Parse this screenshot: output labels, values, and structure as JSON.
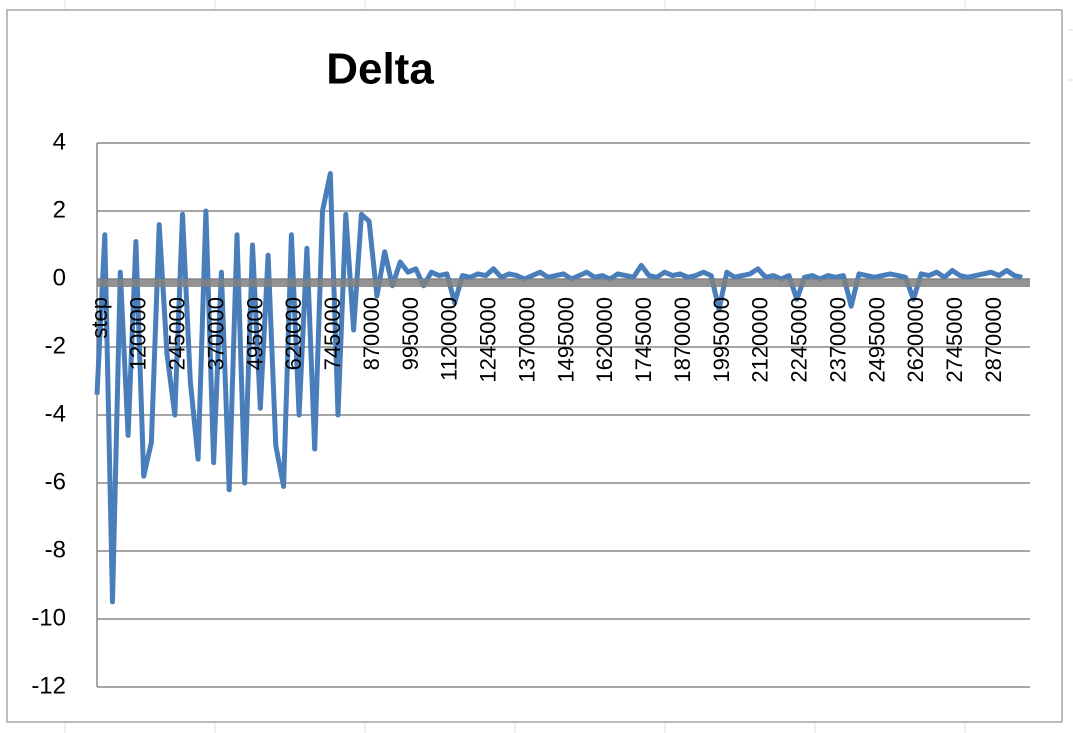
{
  "chart_data": {
    "type": "line",
    "title": "Delta",
    "categories": [
      "step",
      null,
      null,
      null,
      null,
      "120000",
      null,
      null,
      null,
      null,
      "245000",
      null,
      null,
      null,
      null,
      "370000",
      null,
      null,
      null,
      null,
      "495000",
      null,
      null,
      null,
      null,
      "620000",
      null,
      null,
      null,
      null,
      "745000",
      null,
      null,
      null,
      null,
      "870000",
      null,
      null,
      null,
      null,
      "995000",
      null,
      null,
      null,
      null,
      "1120000",
      null,
      null,
      null,
      null,
      "1245000",
      null,
      null,
      null,
      null,
      "1370000",
      null,
      null,
      null,
      null,
      "1495000",
      null,
      null,
      null,
      null,
      "1620000",
      null,
      null,
      null,
      null,
      "1745000",
      null,
      null,
      null,
      null,
      "1870000",
      null,
      null,
      null,
      null,
      "1995000",
      null,
      null,
      null,
      null,
      "2120000",
      null,
      null,
      null,
      null,
      "2245000",
      null,
      null,
      null,
      null,
      "2370000",
      null,
      null,
      null,
      null,
      "2495000",
      null,
      null,
      null,
      null,
      "2620000",
      null,
      null,
      null,
      null,
      "2745000",
      null,
      null,
      null,
      null,
      "2870000",
      null,
      null,
      null,
      null
    ],
    "values": [
      -3.4,
      1.3,
      -9.5,
      0.2,
      -4.6,
      1.1,
      -5.8,
      -4.8,
      1.6,
      -2.2,
      -4.0,
      1.9,
      -3.0,
      -5.3,
      2.0,
      -5.4,
      0.2,
      -6.2,
      1.3,
      -6.0,
      1.0,
      -3.8,
      0.7,
      -4.9,
      -6.1,
      1.3,
      -4.0,
      0.9,
      -5.0,
      2.0,
      3.1,
      -4.0,
      1.9,
      -1.5,
      1.9,
      1.7,
      -0.5,
      0.8,
      -0.2,
      0.5,
      0.2,
      0.3,
      -0.2,
      0.2,
      0.1,
      0.15,
      -0.7,
      0.1,
      0.05,
      0.15,
      0.1,
      0.3,
      0.05,
      0.15,
      0.1,
      0.0,
      0.1,
      0.2,
      0.05,
      0.1,
      0.15,
      0.0,
      0.1,
      0.2,
      0.05,
      0.1,
      0.0,
      0.15,
      0.1,
      0.05,
      0.4,
      0.1,
      0.05,
      0.2,
      0.1,
      0.15,
      0.05,
      0.1,
      0.2,
      0.1,
      -0.9,
      0.2,
      0.05,
      0.1,
      0.15,
      0.3,
      0.05,
      0.1,
      0.0,
      0.1,
      -0.6,
      0.05,
      0.1,
      0.0,
      0.1,
      0.05,
      0.1,
      -0.8,
      0.15,
      0.1,
      0.05,
      0.1,
      0.15,
      0.1,
      0.05,
      -0.6,
      0.15,
      0.1,
      0.2,
      0.05,
      0.25,
      0.1,
      0.05,
      0.1,
      0.15,
      0.2,
      0.1,
      0.25,
      0.1,
      0.05
    ],
    "color": "#4a7ebb",
    "ylim": [
      -12,
      4
    ],
    "yticks": [
      -12,
      -10,
      -8,
      -6,
      -4,
      -2,
      0,
      2,
      4
    ],
    "grid": true
  }
}
